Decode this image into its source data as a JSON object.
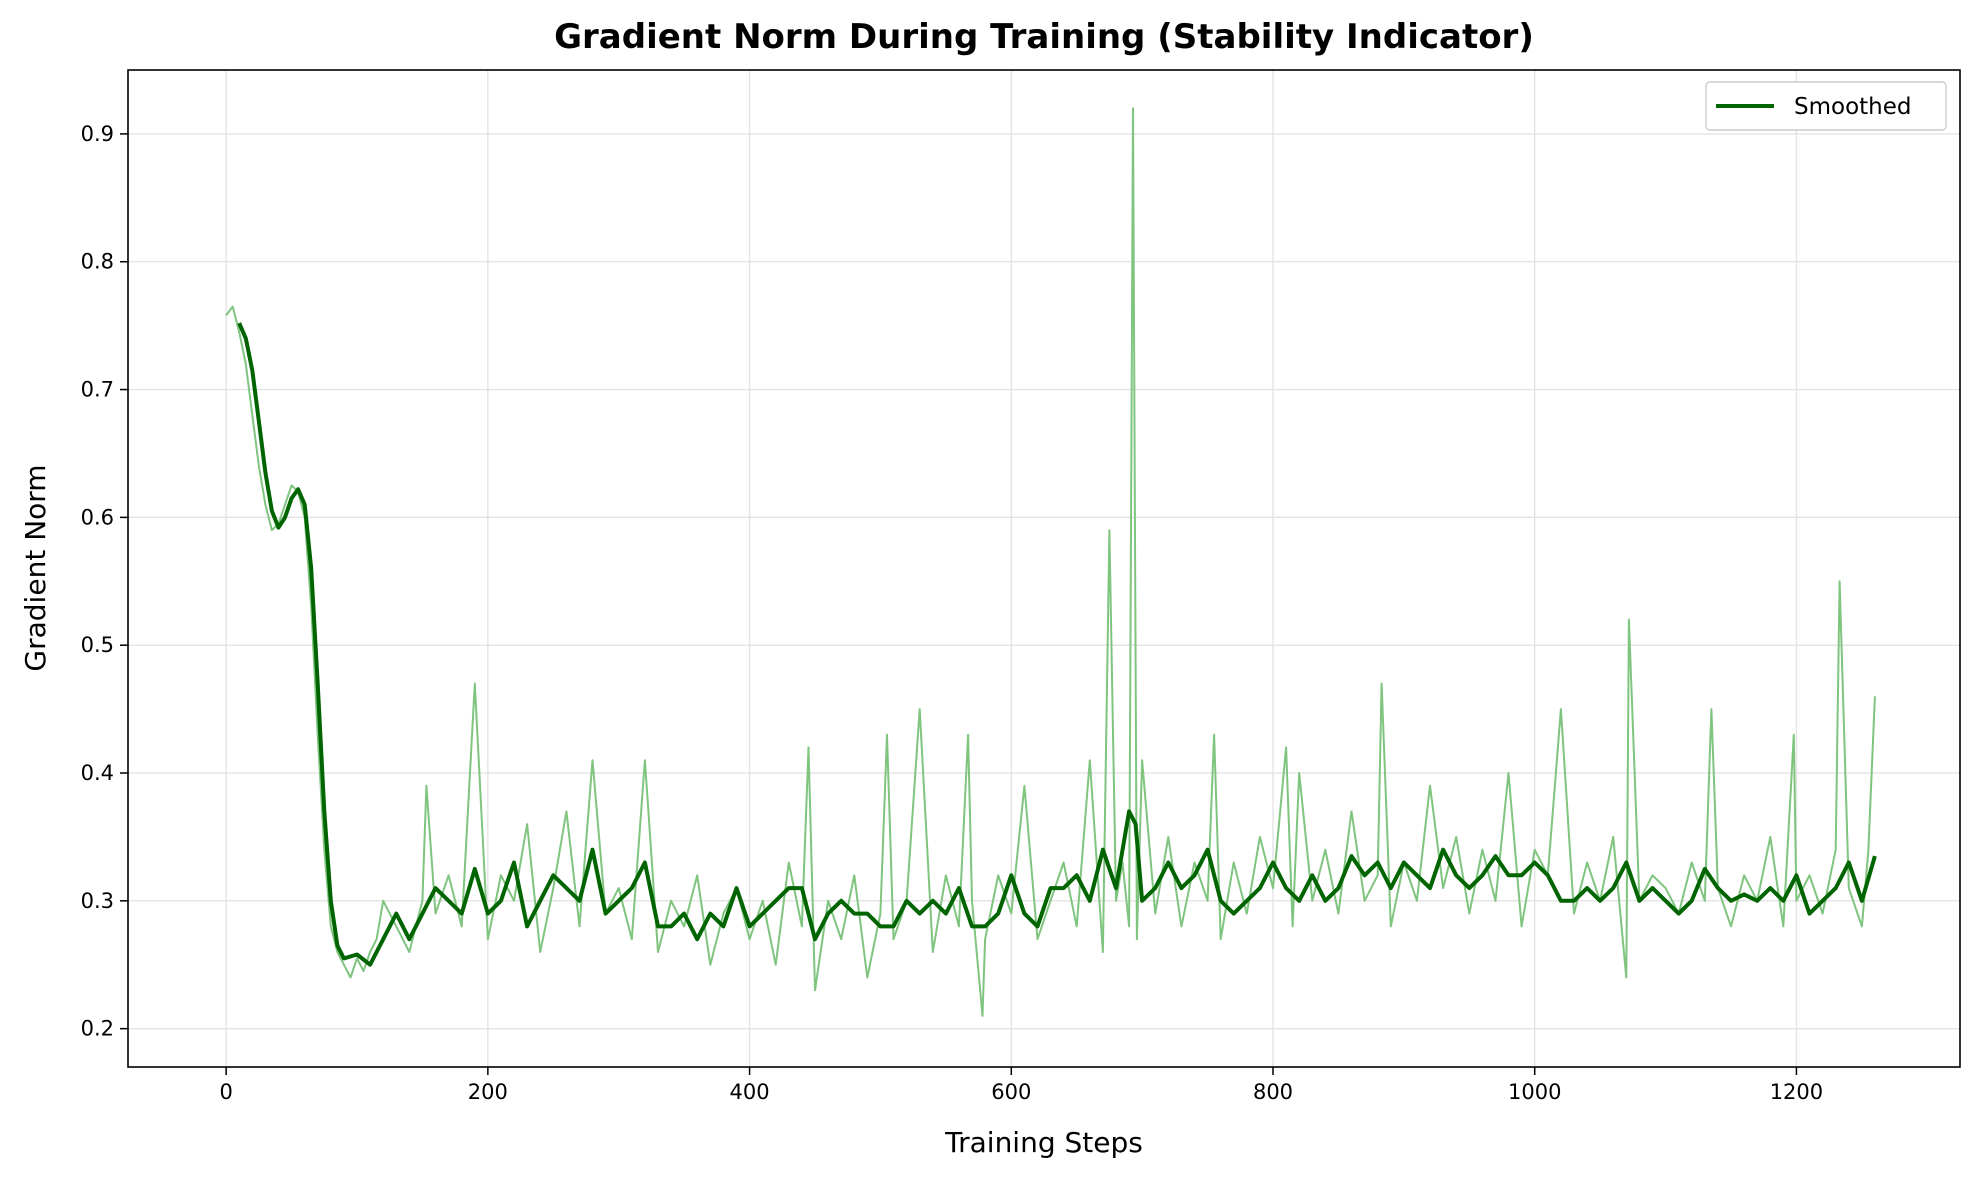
{
  "chart_data": {
    "type": "line",
    "title": "Gradient Norm During Training (Stability Indicator)",
    "xlabel": "Training Steps",
    "ylabel": "Gradient Norm",
    "xlim": [
      -75,
      1325
    ],
    "ylim": [
      0.17,
      0.95
    ],
    "xticks": [
      0,
      200,
      400,
      600,
      800,
      1000,
      1200
    ],
    "yticks": [
      0.2,
      0.3,
      0.4,
      0.5,
      0.6,
      0.7,
      0.8,
      0.9
    ],
    "grid": true,
    "legend": {
      "placement": "top-right",
      "entries": [
        "Smoothed"
      ]
    },
    "colors": {
      "raw": "#7fc47f",
      "smoothed": "#006400"
    },
    "series": [
      {
        "role": "raw",
        "x": [
          0,
          5,
          10,
          15,
          20,
          25,
          30,
          35,
          40,
          45,
          50,
          55,
          60,
          65,
          70,
          75,
          80,
          85,
          90,
          95,
          100,
          105,
          110,
          115,
          120,
          130,
          140,
          150,
          153,
          160,
          170,
          180,
          190,
          200,
          210,
          220,
          230,
          240,
          250,
          260,
          270,
          280,
          290,
          300,
          310,
          320,
          330,
          340,
          350,
          360,
          370,
          380,
          390,
          400,
          410,
          420,
          430,
          440,
          445,
          450,
          460,
          470,
          480,
          490,
          500,
          505,
          510,
          520,
          530,
          540,
          550,
          560,
          567,
          570,
          578,
          580,
          590,
          600,
          610,
          620,
          630,
          640,
          650,
          660,
          670,
          675,
          680,
          685,
          690,
          693,
          696,
          700,
          710,
          720,
          730,
          740,
          750,
          755,
          760,
          770,
          780,
          790,
          800,
          810,
          815,
          820,
          830,
          840,
          850,
          860,
          870,
          880,
          883,
          890,
          900,
          910,
          920,
          930,
          940,
          950,
          960,
          970,
          980,
          990,
          1000,
          1010,
          1020,
          1030,
          1040,
          1050,
          1060,
          1070,
          1072,
          1080,
          1090,
          1100,
          1110,
          1120,
          1130,
          1135,
          1140,
          1150,
          1160,
          1170,
          1180,
          1190,
          1198,
          1200,
          1210,
          1220,
          1230,
          1233,
          1240,
          1250,
          1255,
          1260
        ],
        "values": [
          0.758,
          0.765,
          0.745,
          0.72,
          0.68,
          0.64,
          0.61,
          0.59,
          0.595,
          0.61,
          0.625,
          0.62,
          0.6,
          0.53,
          0.43,
          0.34,
          0.28,
          0.26,
          0.25,
          0.24,
          0.255,
          0.245,
          0.26,
          0.27,
          0.3,
          0.28,
          0.26,
          0.3,
          0.39,
          0.29,
          0.32,
          0.28,
          0.47,
          0.27,
          0.32,
          0.3,
          0.36,
          0.26,
          0.31,
          0.37,
          0.28,
          0.41,
          0.29,
          0.31,
          0.27,
          0.41,
          0.26,
          0.3,
          0.28,
          0.32,
          0.25,
          0.29,
          0.31,
          0.27,
          0.3,
          0.25,
          0.33,
          0.28,
          0.42,
          0.23,
          0.3,
          0.27,
          0.32,
          0.24,
          0.29,
          0.43,
          0.27,
          0.3,
          0.45,
          0.26,
          0.32,
          0.28,
          0.43,
          0.3,
          0.21,
          0.27,
          0.32,
          0.29,
          0.39,
          0.27,
          0.3,
          0.33,
          0.28,
          0.41,
          0.26,
          0.59,
          0.3,
          0.33,
          0.28,
          0.92,
          0.27,
          0.41,
          0.29,
          0.35,
          0.28,
          0.33,
          0.3,
          0.43,
          0.27,
          0.33,
          0.29,
          0.35,
          0.31,
          0.42,
          0.28,
          0.4,
          0.3,
          0.34,
          0.29,
          0.37,
          0.3,
          0.32,
          0.47,
          0.28,
          0.33,
          0.3,
          0.39,
          0.31,
          0.35,
          0.29,
          0.34,
          0.3,
          0.4,
          0.28,
          0.34,
          0.32,
          0.45,
          0.29,
          0.33,
          0.3,
          0.35,
          0.24,
          0.52,
          0.3,
          0.32,
          0.31,
          0.29,
          0.33,
          0.3,
          0.45,
          0.31,
          0.28,
          0.32,
          0.3,
          0.35,
          0.28,
          0.43,
          0.3,
          0.32,
          0.29,
          0.34,
          0.55,
          0.31,
          0.28,
          0.34,
          0.46
        ]
      },
      {
        "name": "Smoothed",
        "role": "smoothed",
        "x": [
          10,
          15,
          20,
          25,
          30,
          35,
          40,
          45,
          50,
          55,
          60,
          65,
          70,
          75,
          80,
          85,
          90,
          100,
          110,
          120,
          130,
          140,
          150,
          160,
          170,
          180,
          190,
          200,
          210,
          220,
          230,
          240,
          250,
          260,
          270,
          280,
          290,
          300,
          310,
          320,
          330,
          340,
          350,
          360,
          370,
          380,
          390,
          400,
          410,
          420,
          430,
          440,
          450,
          460,
          470,
          480,
          490,
          500,
          510,
          520,
          530,
          540,
          550,
          560,
          570,
          580,
          590,
          600,
          610,
          620,
          630,
          640,
          650,
          660,
          670,
          680,
          690,
          695,
          700,
          710,
          720,
          730,
          740,
          750,
          760,
          770,
          780,
          790,
          800,
          810,
          820,
          830,
          840,
          850,
          860,
          870,
          880,
          890,
          900,
          910,
          920,
          930,
          940,
          950,
          960,
          970,
          980,
          990,
          1000,
          1010,
          1020,
          1030,
          1040,
          1050,
          1060,
          1070,
          1080,
          1090,
          1100,
          1110,
          1120,
          1130,
          1140,
          1150,
          1160,
          1170,
          1180,
          1190,
          1200,
          1210,
          1220,
          1230,
          1240,
          1250,
          1260
        ],
        "values": [
          0.752,
          0.74,
          0.715,
          0.675,
          0.635,
          0.605,
          0.592,
          0.6,
          0.615,
          0.622,
          0.61,
          0.56,
          0.47,
          0.37,
          0.3,
          0.265,
          0.255,
          0.258,
          0.25,
          0.27,
          0.29,
          0.27,
          0.29,
          0.31,
          0.3,
          0.29,
          0.325,
          0.29,
          0.3,
          0.33,
          0.28,
          0.3,
          0.32,
          0.31,
          0.3,
          0.34,
          0.29,
          0.3,
          0.31,
          0.33,
          0.28,
          0.28,
          0.29,
          0.27,
          0.29,
          0.28,
          0.31,
          0.28,
          0.29,
          0.3,
          0.31,
          0.31,
          0.27,
          0.29,
          0.3,
          0.29,
          0.29,
          0.28,
          0.28,
          0.3,
          0.29,
          0.3,
          0.29,
          0.31,
          0.28,
          0.28,
          0.29,
          0.32,
          0.29,
          0.28,
          0.31,
          0.31,
          0.32,
          0.3,
          0.34,
          0.31,
          0.37,
          0.36,
          0.3,
          0.31,
          0.33,
          0.31,
          0.32,
          0.34,
          0.3,
          0.29,
          0.3,
          0.31,
          0.33,
          0.31,
          0.3,
          0.32,
          0.3,
          0.31,
          0.335,
          0.32,
          0.33,
          0.31,
          0.33,
          0.32,
          0.31,
          0.34,
          0.32,
          0.31,
          0.32,
          0.335,
          0.32,
          0.32,
          0.33,
          0.32,
          0.3,
          0.3,
          0.31,
          0.3,
          0.31,
          0.33,
          0.3,
          0.31,
          0.3,
          0.29,
          0.3,
          0.325,
          0.31,
          0.3,
          0.305,
          0.3,
          0.31,
          0.3,
          0.32,
          0.29,
          0.3,
          0.31,
          0.33,
          0.3,
          0.335
        ]
      }
    ]
  }
}
